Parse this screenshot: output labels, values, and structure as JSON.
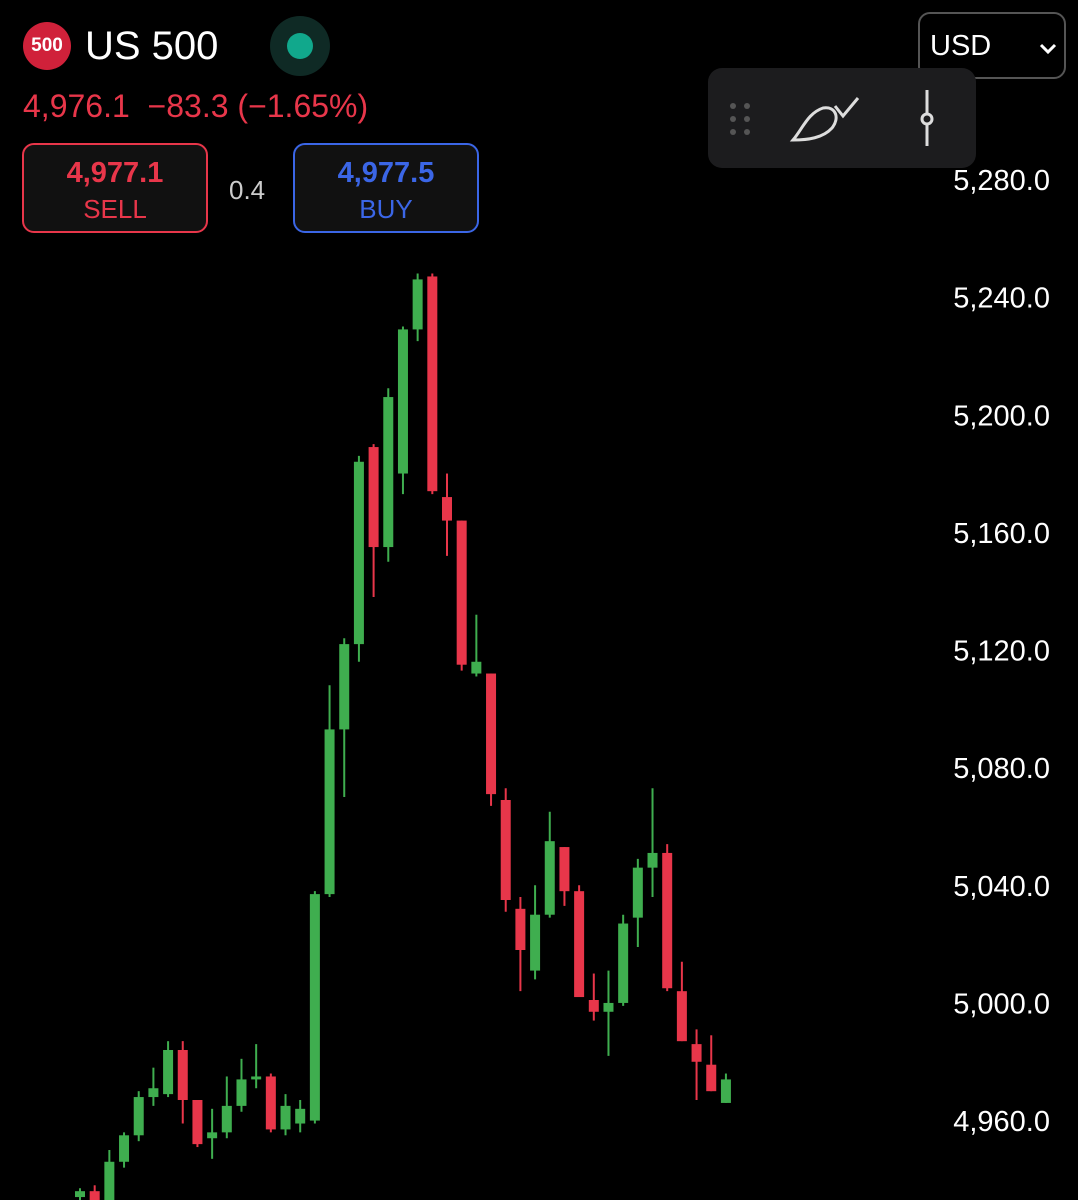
{
  "header": {
    "badge": "500",
    "symbol": "US 500",
    "price": "4,976.1",
    "change": "−83.3",
    "change_pct": "(−1.65%)",
    "sell_price": "4,977.1",
    "sell_label": "SELL",
    "spread": "0.4",
    "buy_price": "4,977.5",
    "buy_label": "BUY",
    "currency": "USD"
  },
  "chart_data": {
    "type": "candlestick",
    "up_color": "#3fae4f",
    "down_color": "#e8364a",
    "ylim": [
      4934,
      5342
    ],
    "yticks": [
      {
        "value": 4960,
        "label": "4,960.0"
      },
      {
        "value": 5000,
        "label": "5,000.0"
      },
      {
        "value": 5040,
        "label": "5,040.0"
      },
      {
        "value": 5080,
        "label": "5,080.0"
      },
      {
        "value": 5120,
        "label": "5,120.0"
      },
      {
        "value": 5160,
        "label": "5,160.0"
      },
      {
        "value": 5200,
        "label": "5,200.0"
      },
      {
        "value": 5240,
        "label": "5,240.0"
      },
      {
        "value": 5280,
        "label": "5,280.0"
      }
    ],
    "open": [
      4935,
      4937,
      4934,
      4947,
      4956,
      4969,
      4970,
      4985,
      4968,
      4955,
      4957,
      4966,
      4975,
      4976,
      4958,
      4960,
      4961,
      5038,
      5094,
      5123,
      5190,
      5156,
      5181,
      5230,
      5248,
      5173,
      5165,
      5113,
      5113,
      5070,
      5033,
      5012,
      5031,
      5054,
      5039,
      5002,
      4998,
      5001,
      5030,
      5047,
      5052,
      5005,
      4987,
      4980,
      4967
    ],
    "high": [
      4938,
      4939,
      4951,
      4957,
      4971,
      4979,
      4988,
      4988,
      4968,
      4965,
      4976,
      4982,
      4987,
      4977,
      4970,
      4968,
      5039,
      5109,
      5125,
      5187,
      5191,
      5210,
      5231,
      5249,
      5249,
      5181,
      5165,
      5133,
      5113,
      5074,
      5037,
      5041,
      5066,
      5054,
      5041,
      5011,
      5012,
      5031,
      5050,
      5074,
      5055,
      5015,
      4992,
      4990,
      4977
    ],
    "low": [
      4934,
      4933,
      4933,
      4945,
      4954,
      4966,
      4969,
      4960,
      4952,
      4948,
      4955,
      4964,
      4972,
      4957,
      4956,
      4957,
      4960,
      5037,
      5071,
      5117,
      5139,
      5151,
      5174,
      5226,
      5174,
      5153,
      5114,
      5112,
      5068,
      5032,
      5005,
      5009,
      5030,
      5034,
      5003,
      4995,
      4983,
      5000,
      5020,
      5037,
      5005,
      4988,
      4968,
      4971,
      4967
    ],
    "close": [
      4937,
      4934,
      4947,
      4956,
      4969,
      4972,
      4985,
      4968,
      4953,
      4957,
      4966,
      4975,
      4976,
      4958,
      4966,
      4965,
      5038,
      5094,
      5123,
      5185,
      5156,
      5207,
      5230,
      5247,
      5175,
      5165,
      5116,
      5117,
      5072,
      5036,
      5019,
      5031,
      5056,
      5039,
      5003,
      4998,
      5001,
      5028,
      5047,
      5052,
      5006,
      4988,
      4981,
      4971,
      4975
    ]
  }
}
